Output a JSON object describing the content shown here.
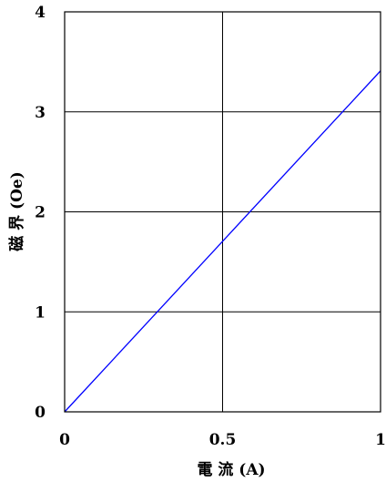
{
  "chart_data": {
    "type": "line",
    "xlabel": "電 流 (A)",
    "ylabel": "磁 界 (Oe)",
    "xlim": [
      0,
      1
    ],
    "ylim": [
      0,
      4
    ],
    "x_ticks": [
      0,
      0.5,
      1
    ],
    "x_tick_labels": [
      "0",
      "0.5",
      "1"
    ],
    "y_ticks": [
      0,
      1,
      2,
      3,
      4
    ],
    "y_tick_labels": [
      "0",
      "1",
      "2",
      "3",
      "4"
    ],
    "grid": true,
    "series": [
      {
        "x": [
          0,
          1
        ],
        "y": [
          0,
          3.41
        ],
        "color": "#0000ff"
      }
    ]
  }
}
